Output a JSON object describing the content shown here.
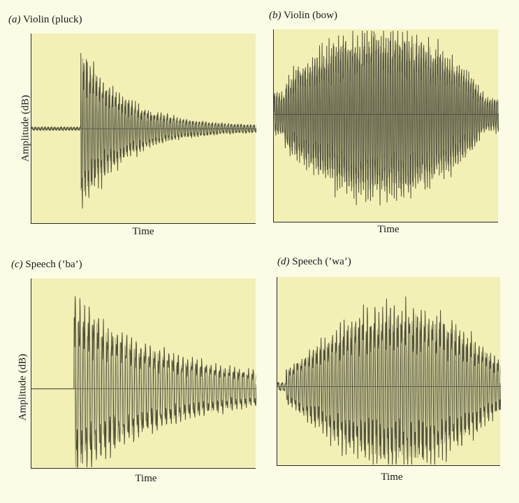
{
  "chart_data": [
    {
      "type": "line",
      "panel_letter": "(a)",
      "title": "Violin (pluck)",
      "xlabel": "Time",
      "ylabel": "Amplitude (dB)",
      "envelope": "pluck",
      "color": "#2f2f22"
    },
    {
      "type": "line",
      "panel_letter": "(b)",
      "title": "Violin (bow)",
      "xlabel": "Time",
      "ylabel": "",
      "envelope": "bow",
      "color": "#2f2f22"
    },
    {
      "type": "line",
      "panel_letter": "(c)",
      "title": "Speech (’ba’)",
      "xlabel": "Time",
      "ylabel": "Amplitude (dB)",
      "envelope": "ba",
      "color": "#2f2f22"
    },
    {
      "type": "line",
      "panel_letter": "(d)",
      "title": "Speech (’wa’)",
      "xlabel": "Time",
      "ylabel": "",
      "envelope": "wa",
      "color": "#2f2f22"
    }
  ]
}
